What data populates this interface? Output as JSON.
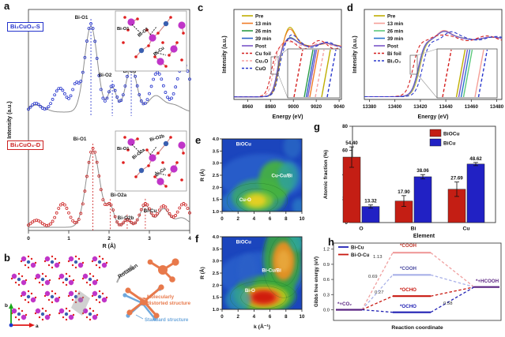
{
  "letters": {
    "a": "a",
    "b": "b",
    "c": "c",
    "d": "d",
    "e": "e",
    "f": "f",
    "g": "g",
    "h": "h"
  },
  "panel_b": {
    "rotation_label": "Rotation",
    "distorted_label_line1": "Molecularly",
    "distorted_label_line2": "distorted structure",
    "standard_label": "Standard structure",
    "axis_a": "a",
    "axis_b": "b",
    "colors": {
      "distorted": "#e8794b",
      "standard": "#6fa8dc",
      "bi": "#c035c8",
      "cu": "#3a5fb0",
      "o": "#e02020"
    }
  },
  "chart_data": [
    {
      "id": "a",
      "type": "line",
      "xlabel": "R (Å)",
      "ylabel": "Intensity (a.u.)",
      "xlim": [
        0,
        4
      ],
      "xticks": [
        0,
        1,
        2,
        3,
        4
      ],
      "series": [
        {
          "name": "Bi₂CuO₄-S",
          "color": "#2433cc",
          "role": "experiment",
          "marker": "open-circle",
          "peaks_R": [
            0.18,
            0.78,
            1.17,
            1.55,
            2.08,
            2.55,
            3.2,
            3.85
          ],
          "peak_labels": [
            {
              "text": "Bi-O1",
              "R": 1.55,
              "x": 103,
              "y": 24
            },
            {
              "text": "Bi-O2",
              "R": 2.08,
              "x": 133,
              "y": 97
            },
            {
              "text": "Bi-Cu",
              "R": 2.55,
              "x": 164,
              "y": 92
            }
          ]
        },
        {
          "name": "fit",
          "color": "#8f8f8f",
          "role": "fit"
        },
        {
          "name": "Bi₂CuO₄-D",
          "color": "#cc2121",
          "role": "experiment",
          "marker": "open-circle",
          "peaks_R": [
            0.2,
            0.85,
            1.6,
            2.03,
            2.45,
            2.9,
            3.35,
            3.85
          ],
          "peak_labels": [
            {
              "text": "Bi-O1",
              "R": 1.6,
              "x": 101,
              "y": 178
            },
            {
              "text": "Bi-O2a",
              "R": 2.03,
              "x": 150,
              "y": 249
            },
            {
              "text": "Bi-O2b",
              "R": 2.45,
              "x": 159,
              "y": 278
            },
            {
              "text": "Bi-Cu",
              "R": 2.9,
              "x": 190,
              "y": 269
            }
          ]
        },
        {
          "name": "fit",
          "color": "#8f8f8f",
          "role": "fit"
        }
      ],
      "insets": [
        {
          "labels": [
            {
              "text": "Bi-O1",
              "x": 2,
              "y": 24,
              "rot": 0
            },
            {
              "text": "Bi-O2",
              "x": 30,
              "y": 33,
              "rot": -38
            },
            {
              "text": "Bi-Cu",
              "x": 50,
              "y": 57,
              "rot": -38
            }
          ]
        },
        {
          "labels": [
            {
              "text": "Bi-O1",
              "x": 2,
              "y": 24,
              "rot": 0
            },
            {
              "text": "Bi-O2a",
              "x": 23,
              "y": 36,
              "rot": -38
            },
            {
              "text": "Bi-O2b",
              "x": 44,
              "y": 13,
              "rot": -16
            },
            {
              "text": "Bi-Cu",
              "x": 52,
              "y": 58,
              "rot": -38
            }
          ]
        }
      ]
    },
    {
      "id": "c",
      "type": "line",
      "xlabel": "Energy (eV)",
      "ylabel": "Intensity (a.u.)",
      "xlim": [
        8948,
        9042
      ],
      "xticks": [
        8960,
        8980,
        9000,
        9020,
        9040
      ],
      "series": [
        {
          "name": "Pre",
          "color": "#bfae00",
          "dash": false,
          "edge": 8986.8,
          "peak_e": 8996.5,
          "peak_a": 0.34,
          "osc": 0.02
        },
        {
          "name": "13 min",
          "color": "#f07c28",
          "dash": false,
          "edge": 8986.4,
          "peak_e": 8996.5,
          "peak_a": 0.3,
          "osc": 0.02
        },
        {
          "name": "26 min",
          "color": "#2a9b46",
          "dash": false,
          "edge": 8986.0,
          "peak_e": 8996.0,
          "peak_a": 0.13,
          "osc": 0.03
        },
        {
          "name": "39 min",
          "color": "#2a62c8",
          "dash": false,
          "edge": 8985.8,
          "peak_e": 8996.0,
          "peak_a": 0.11,
          "osc": 0.03
        },
        {
          "name": "Post",
          "color": "#7a55c8",
          "dash": false,
          "edge": 8985.8,
          "peak_e": 8996.0,
          "peak_a": 0.12,
          "osc": 0.03
        },
        {
          "name": "Cu foil",
          "color": "#d42020",
          "dash": true,
          "edge": 8980.5,
          "peak_e": 8994.0,
          "peak_a": 0.0,
          "osc": 0.08
        },
        {
          "name": "Cu₂O",
          "color": "#f5a0a0",
          "dash": true,
          "edge": 8982.5,
          "peak_e": 8992.0,
          "peak_a": 0.05,
          "osc": 0.03
        },
        {
          "name": "CuO",
          "color": "#2a38cc",
          "dash": true,
          "edge": 8987.2,
          "peak_e": 8997.5,
          "peak_a": 0.17,
          "osc": 0.05
        }
      ]
    },
    {
      "id": "d",
      "type": "line",
      "xlabel": "Energy (eV)",
      "ylabel": "Intensity (a.u.)",
      "xlim": [
        13376,
        13484
      ],
      "xticks": [
        13380,
        13400,
        13420,
        13440,
        13460,
        13480
      ],
      "series": [
        {
          "name": "Pre",
          "color": "#bfae00",
          "dash": false,
          "edge": 13419.6,
          "peak_e": 13438,
          "peak_a": 0.13,
          "osc": 0.02
        },
        {
          "name": "13 min",
          "color": "#f5a098",
          "dash": false,
          "edge": 13419.3,
          "peak_e": 13438,
          "peak_a": 0.14,
          "osc": 0.02
        },
        {
          "name": "26 min",
          "color": "#5cc87c",
          "dash": false,
          "edge": 13419.0,
          "peak_e": 13438,
          "peak_a": 0.12,
          "osc": 0.02
        },
        {
          "name": "39 min",
          "color": "#2874cc",
          "dash": false,
          "edge": 13418.7,
          "peak_e": 13438,
          "peak_a": 0.12,
          "osc": 0.02
        },
        {
          "name": "Post",
          "color": "#7a55c8",
          "dash": false,
          "edge": 13418.5,
          "peak_e": 13438,
          "peak_a": 0.12,
          "osc": 0.02
        },
        {
          "name": "Bi foil",
          "color": "#d42020",
          "dash": true,
          "edge": 13414.5,
          "peak_e": 13432,
          "peak_a": 0.06,
          "osc": 0.04
        },
        {
          "name": "Bi₂O₃",
          "color": "#2a38cc",
          "dash": true,
          "edge": 13421.8,
          "peak_e": 13443,
          "peak_a": 0.1,
          "osc": 0.03
        }
      ]
    },
    {
      "id": "e",
      "type": "heatmap",
      "sample": "BiOCu",
      "ylabel": "R (Å)",
      "xticks": [
        0,
        2,
        4,
        6,
        8,
        10
      ],
      "yticks": [
        "1.0",
        "1.5",
        "2.0",
        "2.5",
        "3.0",
        "3.5",
        "4.0"
      ],
      "annotations": [
        {
          "text": "BiOCu",
          "k": 2.7,
          "R": 3.72,
          "anchor": "middle"
        },
        {
          "text": "Cu-Cu/Bi",
          "k": 7.5,
          "R": 2.42,
          "anchor": "middle"
        },
        {
          "text": "Cu-O",
          "k": 2.9,
          "R": 1.42,
          "anchor": "middle"
        }
      ],
      "blobs": [
        {
          "k": 2.0,
          "R": 1.35,
          "rx": 2.2,
          "ry": 0.5,
          "c": "#2f86c8",
          "o": 0.7
        },
        {
          "k": 4.6,
          "R": 1.6,
          "rx": 3.4,
          "ry": 0.75,
          "c": "#3aa86a",
          "o": 0.85
        },
        {
          "k": 6.7,
          "R": 2.3,
          "rx": 2.1,
          "ry": 0.8,
          "c": "#46b43c",
          "o": 0.9
        },
        {
          "k": 8.3,
          "R": 2.45,
          "rx": 1.3,
          "ry": 0.6,
          "c": "#2fa0a0",
          "o": 0.8
        },
        {
          "k": 4.4,
          "R": 1.45,
          "rx": 2.0,
          "ry": 0.38,
          "c": "#8cc832",
          "o": 0.95,
          "ring": true
        },
        {
          "k": 4.3,
          "R": 1.45,
          "rx": 1.2,
          "ry": 0.25,
          "c": "#e8d020",
          "o": 0.95
        },
        {
          "k": 9.6,
          "R": 1.2,
          "rx": 0.8,
          "ry": 0.35,
          "c": "#2f8cc8",
          "o": 0.6
        },
        {
          "k": 8.8,
          "R": 3.7,
          "rx": 1.1,
          "ry": 0.5,
          "c": "#2f74c8",
          "o": 0.6
        }
      ]
    },
    {
      "id": "f",
      "type": "heatmap",
      "sample": "BiOCu",
      "xlabel": "k (Å⁻¹)",
      "ylabel": "R (Å)",
      "xticks": [
        0,
        2,
        4,
        6,
        8,
        10
      ],
      "yticks": [
        "1.0",
        "1.5",
        "2.0",
        "2.5",
        "3.0",
        "3.5",
        "4.0"
      ],
      "annotations": [
        {
          "text": "BiOCu",
          "k": 2.7,
          "R": 3.72,
          "anchor": "middle"
        },
        {
          "text": "Bi-Cu/Bi",
          "k": 6.2,
          "R": 2.55,
          "anchor": "middle"
        },
        {
          "text": "Bi-O",
          "k": 3.5,
          "R": 1.72,
          "anchor": "middle"
        }
      ],
      "blobs": [
        {
          "k": 5.3,
          "R": 1.6,
          "rx": 3.9,
          "ry": 0.8,
          "c": "#3aa83c",
          "o": 0.9
        },
        {
          "k": 7.6,
          "R": 3.1,
          "rx": 2.4,
          "ry": 1.5,
          "c": "#3aa83c",
          "o": 0.85
        },
        {
          "k": 5.3,
          "R": 1.5,
          "rx": 3.0,
          "ry": 0.5,
          "c": "#b4c81e",
          "o": 0.95
        },
        {
          "k": 5.2,
          "R": 1.5,
          "rx": 2.2,
          "ry": 0.36,
          "c": "#e87820",
          "o": 1,
          "ring": true
        },
        {
          "k": 5.2,
          "R": 1.5,
          "rx": 1.5,
          "ry": 0.26,
          "c": "#d01c0a",
          "o": 1
        },
        {
          "k": 7.7,
          "R": 3.0,
          "rx": 1.4,
          "ry": 0.8,
          "c": "#e89020",
          "o": 0.95,
          "ring": true
        },
        {
          "k": 7.7,
          "R": 3.0,
          "rx": 0.8,
          "ry": 0.45,
          "c": "#e8a83c",
          "o": 0.9
        },
        {
          "k": 2.0,
          "R": 1.4,
          "rx": 1.6,
          "ry": 0.5,
          "c": "#2f9ab4",
          "o": 0.7
        },
        {
          "k": 9.4,
          "R": 4.0,
          "rx": 1.0,
          "ry": 0.6,
          "c": "#2fa8a0",
          "o": 0.8
        },
        {
          "k": 3.2,
          "R": 2.6,
          "rx": 1.2,
          "ry": 0.7,
          "c": "#2f64c8",
          "o": 0.5
        }
      ]
    },
    {
      "id": "g",
      "type": "bar",
      "xlabel": "Element",
      "ylabel": "Atomic fraction (%)",
      "ylim": [
        0,
        80
      ],
      "yticks": [
        0,
        20,
        40,
        60,
        80
      ],
      "categories": [
        "O",
        "Bi",
        "Cu"
      ],
      "series": [
        {
          "name": "BiOCu",
          "color": "#c41e14",
          "values": [
            54.4,
            17.9,
            27.69
          ],
          "errors": [
            8.5,
            4.5,
            6.0
          ]
        },
        {
          "name": "BiCu",
          "color": "#2121c4",
          "values": [
            13.32,
            38.06,
            48.62
          ],
          "errors": [
            1.3,
            1.8,
            1.3
          ]
        }
      ]
    },
    {
      "id": "h",
      "type": "energy-diagram",
      "xlabel": "Reaction coordinate",
      "ylabel": "Gibbs free energy (eV)",
      "yticks": [
        "0.0",
        "0.3",
        "0.6",
        "0.9",
        "1.2"
      ],
      "legend": [
        {
          "name": "Bi-Cu",
          "color": "#2121b4"
        },
        {
          "name": "Bi-O-Cu",
          "color": "#c81810"
        }
      ],
      "levels": [
        {
          "label": "*+CO₂",
          "E": 0.0,
          "color": "#5a2482",
          "label_color": "#5a2482"
        },
        {
          "label": "*COOH",
          "pathway": "Bi-O-Cu",
          "E": 1.13,
          "color": "#f0a0a0",
          "label_color": "#c03a2e"
        },
        {
          "label": "*COOH",
          "pathway": "Bi-Cu",
          "E": 0.69,
          "color": "#a8b0e8",
          "label_color": "#4a4aa0"
        },
        {
          "label": "*OCHO",
          "pathway": "Bi-O-Cu",
          "E": 0.27,
          "color": "#c81810",
          "label_color": "#c81810"
        },
        {
          "label": "*OCHO",
          "pathway": "Bi-Cu",
          "E": -0.05,
          "color": "#2121b4",
          "label_color": "#2121b4"
        },
        {
          "label": "*+HCOOH",
          "E": 0.45,
          "color": "#5a2482",
          "label_color": "#5a2482"
        }
      ],
      "step_annotations": [
        {
          "text": "1.13",
          "x": 78,
          "y": 27
        },
        {
          "text": "0.69",
          "x": 72,
          "y": 52
        },
        {
          "text": "0.27",
          "x": 80,
          "y": 72
        },
        {
          "text": "0.58",
          "x": 167,
          "y": 86
        }
      ]
    }
  ]
}
